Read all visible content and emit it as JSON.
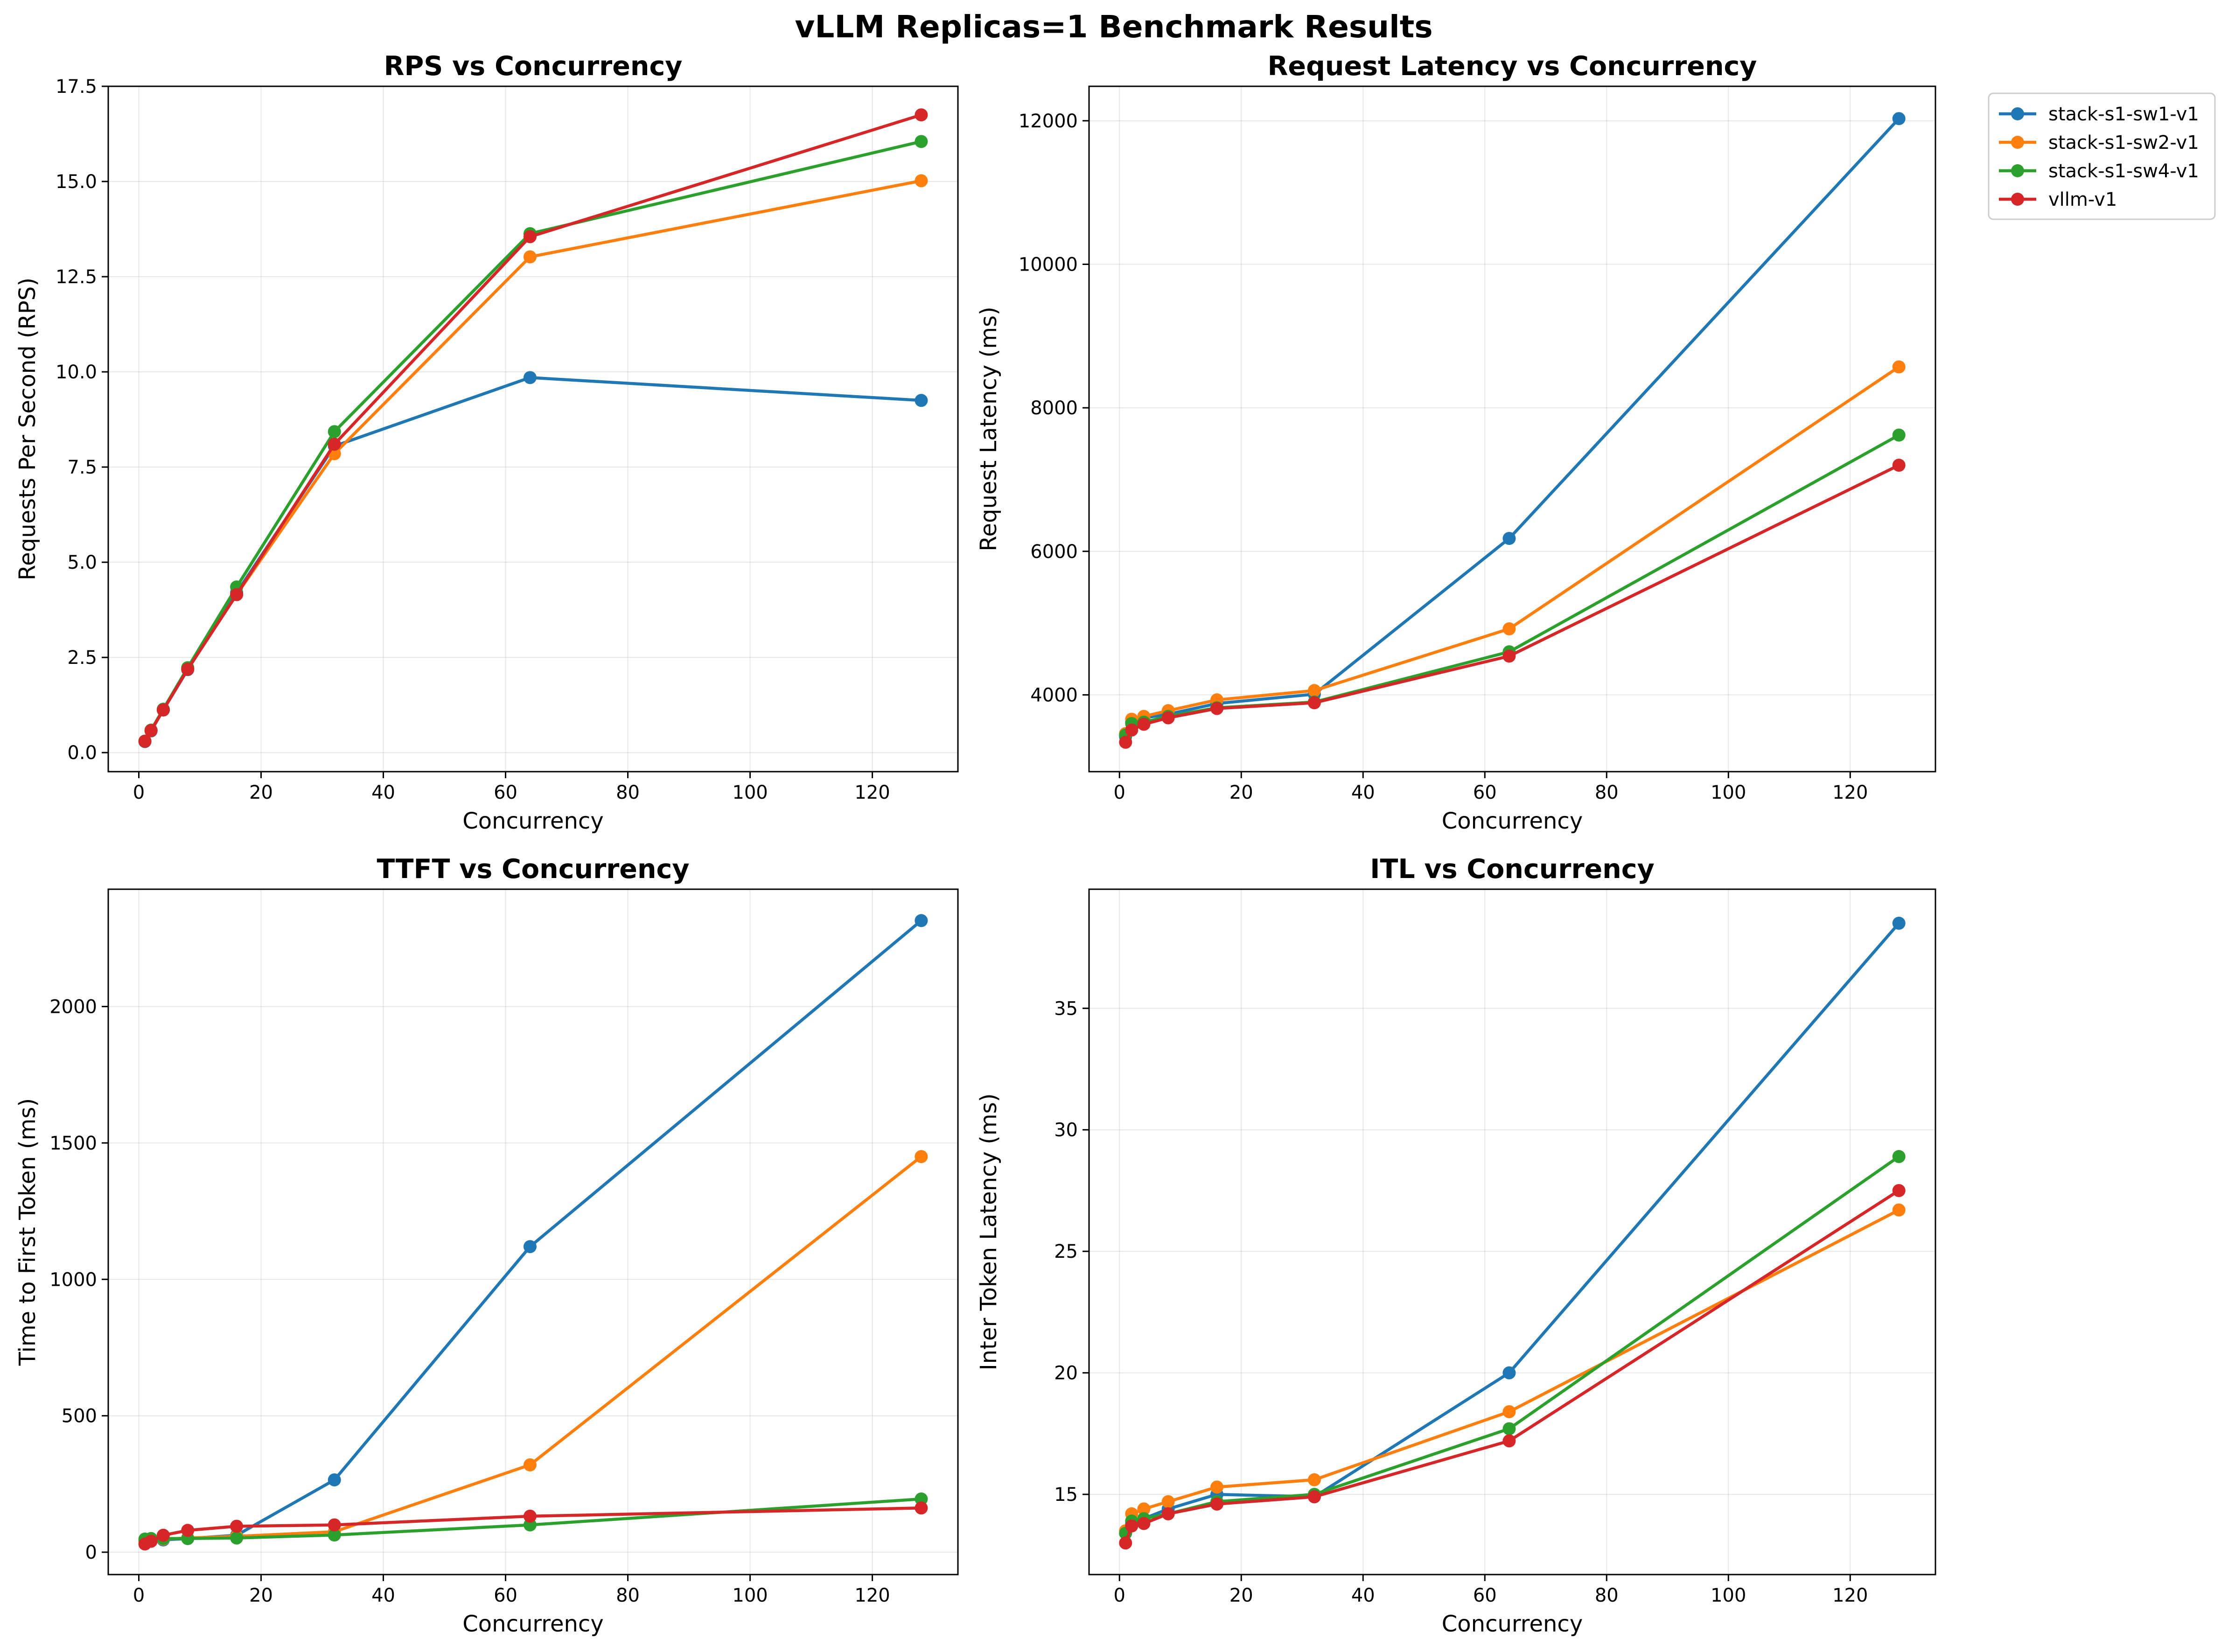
{
  "suptitle": "vLLM Replicas=1 Benchmark Results",
  "legend": [
    "stack-s1-sw1-v1",
    "stack-s1-sw2-v1",
    "stack-s1-sw4-v1",
    "vllm-v1"
  ],
  "colors": {
    "stack-s1-sw1-v1": "#1f77b4",
    "stack-s1-sw2-v1": "#ff7f0e",
    "stack-s1-sw4-v1": "#2ca02c",
    "vllm-v1": "#d62728"
  },
  "chart_data": [
    {
      "type": "line",
      "title": "RPS vs Concurrency",
      "xlabel": "Concurrency",
      "ylabel": "Requests Per Second (RPS)",
      "x": [
        1,
        2,
        4,
        8,
        16,
        32,
        64,
        128
      ],
      "xlim": [
        -5,
        134
      ],
      "ylim": [
        -0.5,
        17.5
      ],
      "xticks": [
        0,
        20,
        40,
        60,
        80,
        100,
        120
      ],
      "yticks": [
        0.0,
        2.5,
        5.0,
        7.5,
        10.0,
        12.5,
        15.0,
        17.5
      ],
      "ytick_labels": [
        "0.0",
        "2.5",
        "5.0",
        "7.5",
        "10.0",
        "12.5",
        "15.0",
        "17.5"
      ],
      "grid": true,
      "series": [
        {
          "name": "stack-s1-sw1-v1",
          "values": [
            0.29,
            0.57,
            1.12,
            2.18,
            4.2,
            8.05,
            9.85,
            9.25
          ]
        },
        {
          "name": "stack-s1-sw2-v1",
          "values": [
            0.3,
            0.58,
            1.13,
            2.2,
            4.15,
            7.85,
            13.02,
            15.02
          ]
        },
        {
          "name": "stack-s1-sw4-v1",
          "values": [
            0.3,
            0.59,
            1.14,
            2.23,
            4.35,
            8.43,
            13.63,
            16.05
          ]
        },
        {
          "name": "vllm-v1",
          "values": [
            0.3,
            0.58,
            1.12,
            2.19,
            4.15,
            8.1,
            13.55,
            16.75
          ]
        }
      ]
    },
    {
      "type": "line",
      "title": "Request Latency vs Concurrency",
      "xlabel": "Concurrency",
      "ylabel": "Request Latency (ms)",
      "x": [
        1,
        2,
        4,
        8,
        16,
        32,
        64,
        128
      ],
      "xlim": [
        -5,
        134
      ],
      "ylim": [
        2930,
        12480
      ],
      "xticks": [
        0,
        20,
        40,
        60,
        80,
        100,
        120
      ],
      "yticks": [
        4000,
        6000,
        8000,
        10000,
        12000
      ],
      "ytick_labels": [
        "4000",
        "6000",
        "8000",
        "10000",
        "12000"
      ],
      "grid": true,
      "series": [
        {
          "name": "stack-s1-sw1-v1",
          "values": [
            3420,
            3620,
            3680,
            3730,
            3880,
            4010,
            6180,
            12030
          ]
        },
        {
          "name": "stack-s1-sw2-v1",
          "values": [
            3460,
            3660,
            3700,
            3780,
            3930,
            4060,
            4920,
            8570
          ]
        },
        {
          "name": "stack-s1-sw4-v1",
          "values": [
            3440,
            3600,
            3620,
            3700,
            3820,
            3900,
            4600,
            7620
          ]
        },
        {
          "name": "vllm-v1",
          "values": [
            3340,
            3510,
            3590,
            3680,
            3810,
            3890,
            4540,
            7200
          ]
        }
      ]
    },
    {
      "type": "line",
      "title": "TTFT vs Concurrency",
      "xlabel": "Concurrency",
      "ylabel": "Time to First Token (ms)",
      "x": [
        1,
        2,
        4,
        8,
        16,
        32,
        64,
        128
      ],
      "xlim": [
        -5,
        134
      ],
      "ylim": [
        -82,
        2430
      ],
      "xticks": [
        0,
        20,
        40,
        60,
        80,
        100,
        120
      ],
      "yticks": [
        0,
        500,
        1000,
        1500,
        2000
      ],
      "ytick_labels": [
        "0",
        "500",
        "1000",
        "1500",
        "2000"
      ],
      "grid": true,
      "series": [
        {
          "name": "stack-s1-sw1-v1",
          "values": [
            40,
            42,
            45,
            50,
            62,
            265,
            1120,
            2315
          ]
        },
        {
          "name": "stack-s1-sw2-v1",
          "values": [
            42,
            45,
            48,
            52,
            58,
            75,
            320,
            1450
          ]
        },
        {
          "name": "stack-s1-sw4-v1",
          "values": [
            48,
            50,
            50,
            50,
            52,
            63,
            100,
            195
          ]
        },
        {
          "name": "vllm-v1",
          "values": [
            30,
            40,
            62,
            80,
            95,
            100,
            132,
            162
          ]
        }
      ]
    },
    {
      "type": "line",
      "title": "ITL vs Concurrency",
      "xlabel": "Concurrency",
      "ylabel": "Inter Token Latency (ms)",
      "x": [
        1,
        2,
        4,
        8,
        16,
        32,
        64,
        128
      ],
      "xlim": [
        -5,
        134
      ],
      "ylim": [
        11.7,
        39.9
      ],
      "xticks": [
        0,
        20,
        40,
        60,
        80,
        100,
        120
      ],
      "yticks": [
        15,
        20,
        25,
        30,
        35
      ],
      "ytick_labels": [
        "15",
        "20",
        "25",
        "30",
        "35"
      ],
      "grid": true,
      "series": [
        {
          "name": "stack-s1-sw1-v1",
          "values": [
            13.4,
            13.8,
            14.0,
            14.4,
            15.0,
            14.9,
            20.0,
            38.5
          ]
        },
        {
          "name": "stack-s1-sw2-v1",
          "values": [
            13.5,
            14.2,
            14.4,
            14.7,
            15.3,
            15.6,
            18.4,
            26.7
          ]
        },
        {
          "name": "stack-s1-sw4-v1",
          "values": [
            13.4,
            13.9,
            14.0,
            14.2,
            14.7,
            15.0,
            17.7,
            28.9
          ]
        },
        {
          "name": "vllm-v1",
          "values": [
            13.0,
            13.7,
            13.8,
            14.2,
            14.6,
            14.9,
            17.2,
            27.5
          ]
        }
      ]
    }
  ]
}
